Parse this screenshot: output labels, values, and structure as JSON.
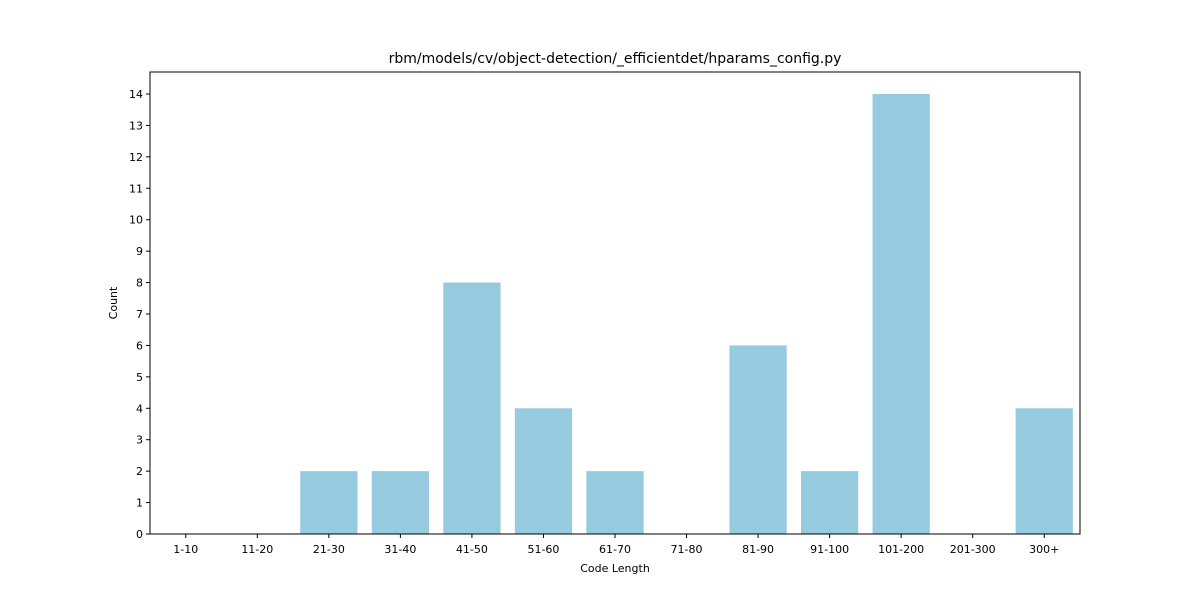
{
  "chart_data": {
    "type": "bar",
    "title": "rbm/models/cv/object-detection/_efficientdet/hparams_config.py",
    "xlabel": "Code Length",
    "ylabel": "Count",
    "categories": [
      "1-10",
      "11-20",
      "21-30",
      "31-40",
      "41-50",
      "51-60",
      "61-70",
      "71-80",
      "81-90",
      "91-100",
      "101-200",
      "201-300",
      "300+"
    ],
    "values": [
      0,
      0,
      2,
      2,
      8,
      4,
      2,
      0,
      6,
      2,
      14,
      0,
      4
    ],
    "ylim": [
      0,
      14.7
    ],
    "yticks": [
      0,
      1,
      2,
      3,
      4,
      5,
      6,
      7,
      8,
      9,
      10,
      11,
      12,
      13,
      14
    ],
    "grid": false,
    "legend": "none",
    "bar_color": "#96cade"
  }
}
